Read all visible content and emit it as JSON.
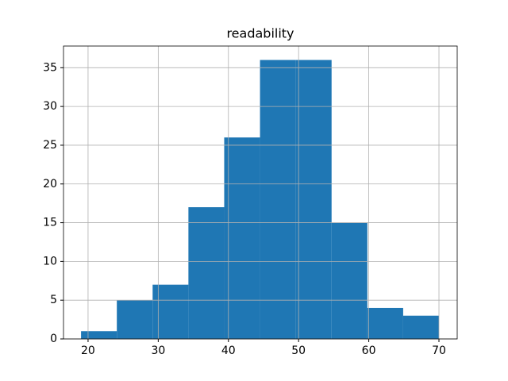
{
  "chart_data": {
    "type": "histogram",
    "title": "readability",
    "bins": [
      19,
      24.1,
      29.2,
      34.3,
      39.4,
      44.5,
      49.6,
      54.7,
      59.8,
      64.9,
      70
    ],
    "values": [
      1,
      5,
      7,
      17,
      26,
      36,
      36,
      15,
      4,
      3
    ],
    "color": "#1f77b4",
    "xlim": [
      16.5,
      72.6
    ],
    "xticks": [
      20,
      30,
      40,
      50,
      60,
      70
    ],
    "ylim": [
      0,
      37.8
    ],
    "yticks": [
      0,
      5,
      10,
      15,
      20,
      25,
      30,
      35
    ],
    "grid": true
  }
}
